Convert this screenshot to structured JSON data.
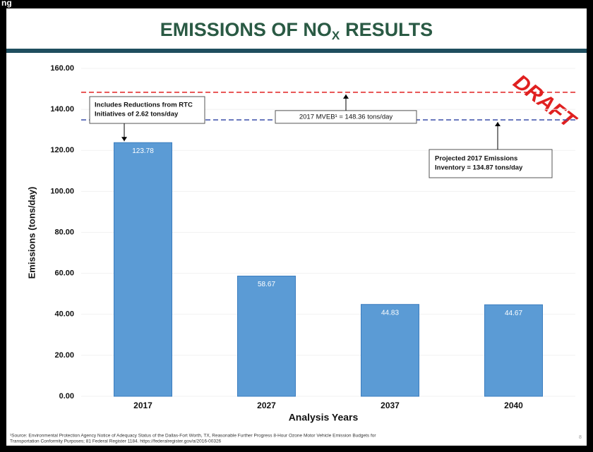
{
  "header": {
    "fragment": "ng"
  },
  "chart_data": {
    "type": "bar",
    "title": {
      "main": "EMISSIONS OF NO",
      "subscript": "X",
      "rest": "RESULTS"
    },
    "y_label": "Emissions (tons/day)",
    "x_label": "Analysis Years",
    "categories": [
      "2017",
      "2027",
      "2037",
      "2040"
    ],
    "values": [
      123.78,
      58.67,
      44.83,
      44.67
    ],
    "color": "#5b9bd5",
    "ylim": [
      0,
      160
    ],
    "yticks": [
      {
        "value": 0,
        "label": "0.00"
      },
      {
        "value": 20,
        "label": "20.00"
      },
      {
        "value": 40,
        "label": "40.00"
      },
      {
        "value": 60,
        "label": "60.00"
      },
      {
        "value": 80,
        "label": "80.00"
      },
      {
        "value": 100,
        "label": "100.00"
      },
      {
        "value": 120,
        "label": "120.00"
      },
      {
        "value": 140,
        "label": "140.00"
      },
      {
        "value": 160,
        "label": "160.00"
      }
    ],
    "grid": true,
    "reference_lines": [
      {
        "value": 148.36,
        "color": "#e02020",
        "label": "2017 MVEB¹ = 148.36 tons/day"
      },
      {
        "value": 134.87,
        "color": "#3a4fa8",
        "label_lines": [
          "Projected 2017 Emissions",
          "Inventory = 134.87 tons/day"
        ]
      }
    ],
    "annotation": {
      "lines": [
        "Includes Reductions from RTC",
        "Initiatives of 2.62 tons/day"
      ]
    },
    "stamp": "DRAFT",
    "footnote": [
      "¹Source: Environmental Protection Agency Notice of Adequacy Status of the Dallas-Fort Worth, TX, Reasonable Further Progress 8-Hour Ozone Motor Vehicle Emission Budgets for",
      "Transportation Conformity Purposes; 81 Federal Register 1184. https://federalregister.gov/a/2016-00326"
    ],
    "page_number": "8"
  }
}
